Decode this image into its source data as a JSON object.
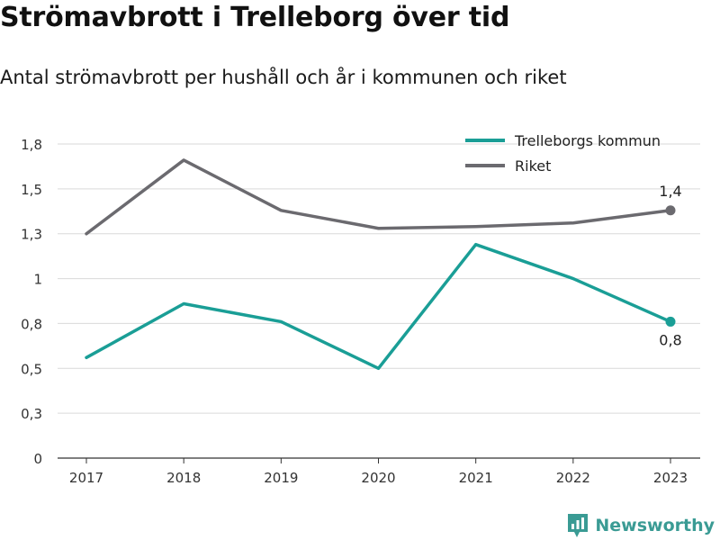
{
  "header": {
    "title": "Strömavbrott i Trelleborg över tid",
    "subtitle": "Antal strömavbrott per hushåll och år i kommunen och riket"
  },
  "brand": {
    "label": "Newsworthy",
    "icon": "newsworthy-logo-icon",
    "color": "#3a9b94"
  },
  "chart_data": {
    "type": "line",
    "title": "Strömavbrott i Trelleborg över tid",
    "subtitle": "Antal strömavbrott per hushåll och år i kommunen och riket",
    "xlabel": "",
    "ylabel": "",
    "categories": [
      "2017",
      "2018",
      "2019",
      "2020",
      "2021",
      "2022",
      "2023"
    ],
    "ylim": [
      0,
      1.75
    ],
    "yticks": [
      {
        "value": 0,
        "label": "0"
      },
      {
        "value": 0.25,
        "label": "0,3"
      },
      {
        "value": 0.5,
        "label": "0,5"
      },
      {
        "value": 0.75,
        "label": "0,8"
      },
      {
        "value": 1.0,
        "label": "1"
      },
      {
        "value": 1.25,
        "label": "1,3"
      },
      {
        "value": 1.5,
        "label": "1,5"
      },
      {
        "value": 1.75,
        "label": "1,8"
      }
    ],
    "grid": true,
    "legend_position": "top-right",
    "series": [
      {
        "name": "Trelleborgs kommun",
        "color": "#1a9e96",
        "values": [
          0.56,
          0.86,
          0.76,
          0.5,
          1.19,
          1.0,
          0.76
        ],
        "end_label": "0,8"
      },
      {
        "name": "Riket",
        "color": "#6b6a6f",
        "values": [
          1.25,
          1.66,
          1.38,
          1.28,
          1.29,
          1.31,
          1.38
        ],
        "end_label": "1,4"
      }
    ]
  }
}
